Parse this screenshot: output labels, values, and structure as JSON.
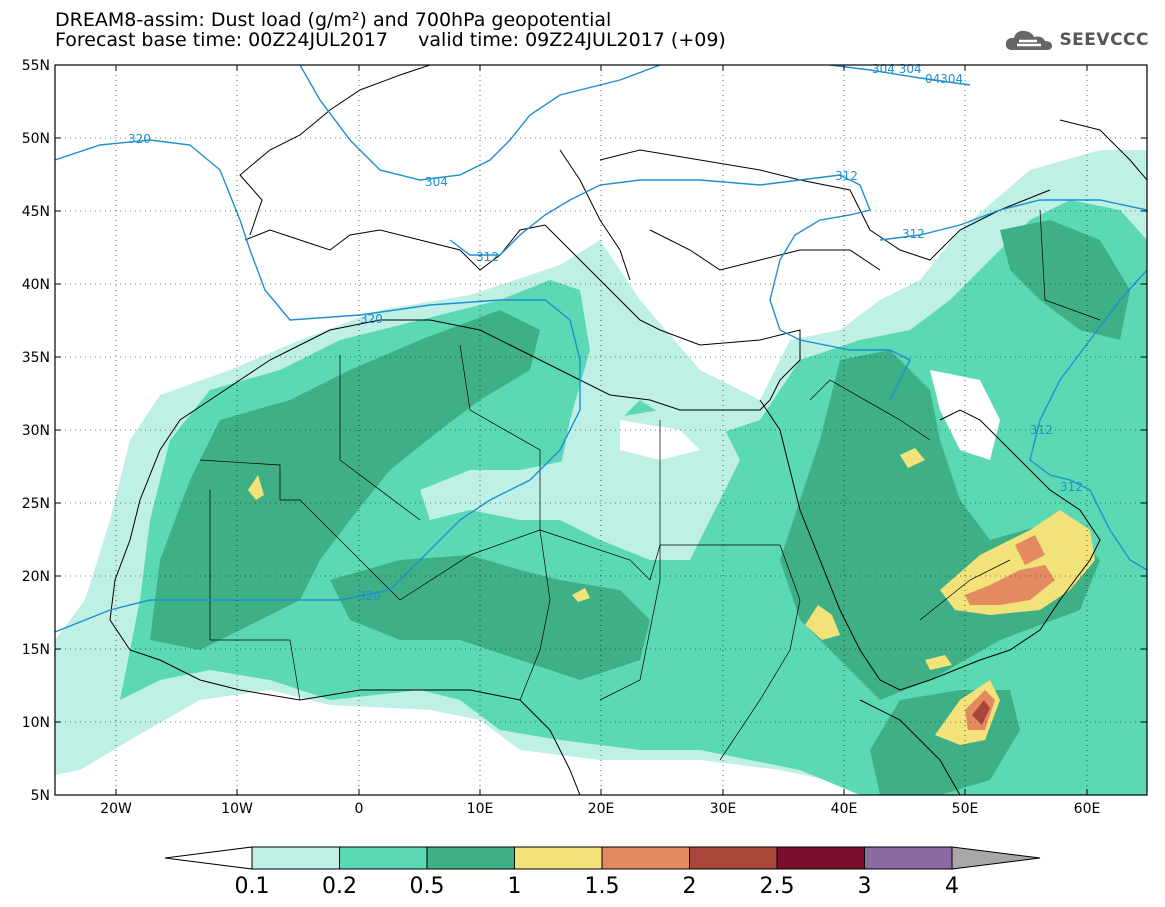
{
  "title": {
    "line1": "DREAM8-assim: Dust load (g/m²) and 700hPa geopotential",
    "line2": "Forecast base time: 00Z24JUL2017     valid time: 09Z24JUL2017 (+09)"
  },
  "logo": {
    "text": "SEEVCCC",
    "icon": "cloud-icon"
  },
  "lat_labels": [
    "55N",
    "50N",
    "45N",
    "40N",
    "35N",
    "30N",
    "25N",
    "20N",
    "15N",
    "10N",
    "5N"
  ],
  "lon_labels": [
    "20W",
    "10W",
    "0",
    "10E",
    "20E",
    "30E",
    "40E",
    "50E",
    "60E"
  ],
  "contour_labels": [
    "320",
    "304",
    "312",
    "312",
    "320",
    "320",
    "304 304",
    "04304",
    "312",
    "312",
    "312"
  ],
  "colorbar": {
    "levels": [
      "0.1",
      "0.2",
      "0.5",
      "1",
      "1.5",
      "2",
      "2.5",
      "3",
      "4"
    ],
    "colors": [
      "#ffffff",
      "#bff0e6",
      "#5ad9b4",
      "#3faf85",
      "#f2e27a",
      "#e48a63",
      "#a9463a",
      "#7a0e2c",
      "#8a6aa0",
      "#a8a8a8"
    ]
  },
  "colors": {
    "dust_01": "#bff0e6",
    "dust_02": "#5ad9b4",
    "dust_05": "#3faf85",
    "dust_1": "#f2e27a",
    "dust_15": "#e48a63",
    "dust_2": "#a9463a",
    "geopotential_contour": "#1e90d0"
  }
}
